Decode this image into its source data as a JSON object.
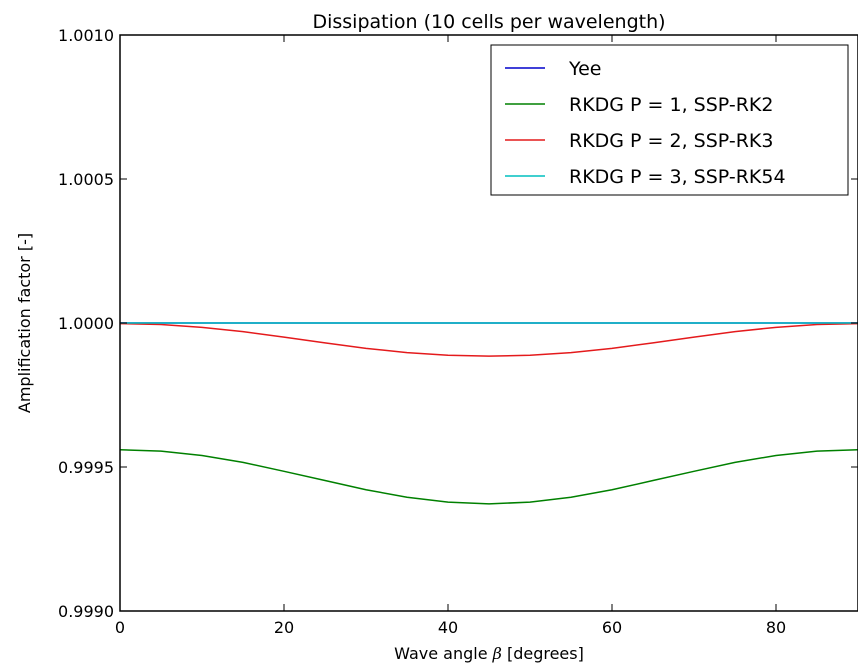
{
  "chart_data": {
    "type": "line",
    "title": "Dissipation (10 cells per wavelength)",
    "xlabel_prefix": "Wave angle ",
    "xlabel_symbol": "β",
    "xlabel_suffix": " [degrees]",
    "ylabel": "Amplification factor [-]",
    "xlim": [
      0,
      90
    ],
    "ylim": [
      0.999,
      1.001
    ],
    "x_ticks": [
      0,
      20,
      40,
      60,
      80
    ],
    "x_tick_labels": [
      "0",
      "20",
      "40",
      "60",
      "80"
    ],
    "y_ticks": [
      0.999,
      0.9995,
      1.0,
      1.0005,
      1.001
    ],
    "y_tick_labels": [
      "0.9990",
      "0.9995",
      "1.0000",
      "1.0005",
      "1.0010"
    ],
    "grid": false,
    "legend_position": "top-right",
    "x": [
      0,
      5,
      10,
      15,
      20,
      25,
      30,
      35,
      40,
      45,
      50,
      55,
      60,
      65,
      70,
      75,
      80,
      85,
      90
    ],
    "series": [
      {
        "name": "Yee",
        "color": "#0000cc",
        "values": [
          1.0,
          1.0,
          1.0,
          1.0,
          1.0,
          1.0,
          1.0,
          1.0,
          1.0,
          1.0,
          1.0,
          1.0,
          1.0,
          1.0,
          1.0,
          1.0,
          1.0,
          1.0,
          1.0
        ]
      },
      {
        "name": "RKDG P = 1, SSP-RK2",
        "color": "#008000",
        "values": [
          0.99956,
          0.999555,
          0.99954,
          0.999516,
          0.999485,
          0.999453,
          0.999421,
          0.999395,
          0.999378,
          0.999372,
          0.999378,
          0.999395,
          0.999421,
          0.999453,
          0.999485,
          0.999516,
          0.99954,
          0.999555,
          0.99956
        ]
      },
      {
        "name": "RKDG P = 2, SSP-RK3",
        "color": "#e41a1c",
        "values": [
          0.999998,
          0.999995,
          0.999985,
          0.99997,
          0.999951,
          0.999931,
          0.999912,
          0.999897,
          0.999888,
          0.999885,
          0.999888,
          0.999897,
          0.999912,
          0.999931,
          0.999951,
          0.99997,
          0.999985,
          0.999995,
          0.999998
        ]
      },
      {
        "name": "RKDG P = 3, SSP-RK54",
        "color": "#00bfbf",
        "values": [
          1.0,
          1.0,
          1.0,
          1.0,
          1.0,
          1.0,
          1.0,
          1.0,
          1.0,
          1.0,
          1.0,
          1.0,
          1.0,
          1.0,
          1.0,
          1.0,
          1.0,
          1.0,
          1.0
        ]
      }
    ]
  }
}
